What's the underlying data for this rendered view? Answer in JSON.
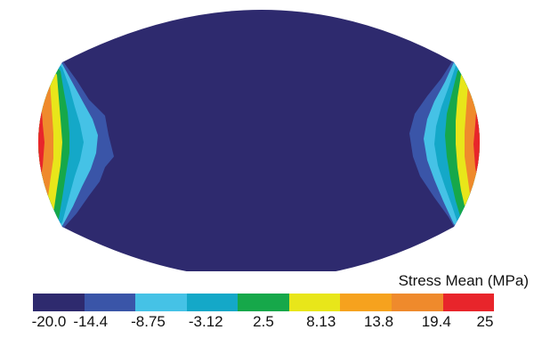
{
  "legend": {
    "title": "Stress Mean (MPa)",
    "ticks": [
      "-20.0",
      "-14.4",
      "-8.75",
      "-3.12",
      "2.5",
      "8.13",
      "13.8",
      "19.4",
      "25"
    ],
    "colors": [
      "#2e2a6e",
      "#3a55a8",
      "#45c2e6",
      "#14a8c8",
      "#16a84a",
      "#e8e61a",
      "#f6a21e",
      "#ef8a2c",
      "#e8252b"
    ]
  },
  "contour": {
    "background_color": "#2e2a6e",
    "band_colors": [
      "#e8252b",
      "#ef8a2c",
      "#e8e61a",
      "#16a84a",
      "#14a8c8",
      "#45c2e6",
      "#3a55a8"
    ]
  }
}
